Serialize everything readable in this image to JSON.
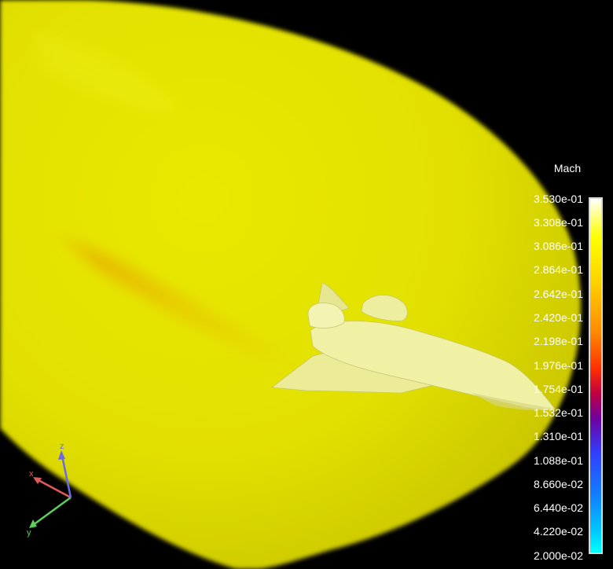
{
  "legend": {
    "title": "Mach",
    "ticks": [
      "3.530e-01",
      "3.308e-01",
      "3.086e-01",
      "2.864e-01",
      "2.642e-01",
      "2.420e-01",
      "2.198e-01",
      "1.976e-01",
      "1.754e-01",
      "1.532e-01",
      "1.310e-01",
      "1.088e-01",
      "8.660e-02",
      "6.440e-02",
      "4.220e-02",
      "2.000e-02"
    ]
  },
  "axes": {
    "x": "x",
    "y": "y",
    "z": "z"
  },
  "colors": {
    "background": "#000000",
    "field": "#e4e400",
    "model": "#f1f1a6",
    "x_axis": "#e05a5a",
    "y_axis": "#5ad05a",
    "z_axis": "#6a6ae8"
  }
}
